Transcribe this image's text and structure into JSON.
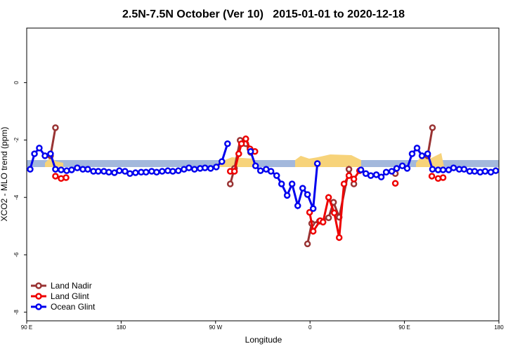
{
  "chart_data": {
    "type": "line",
    "title": "2.5N-7.5N October (Ver 10)   2015-01-01 to 2020-12-18",
    "x_label": "Longitude",
    "y_label": "XCO2 - MLO trend (ppm)",
    "xlim": [
      90,
      540
    ],
    "xticks": [
      {
        "value": 90,
        "label": "90 E"
      },
      180,
      {
        "value": 270,
        "label": "90 W"
      },
      {
        "value": 360,
        "label": "0"
      },
      {
        "value": 450,
        "label": "90 E"
      },
      {
        "value": 540,
        "label": "180"
      }
    ],
    "ylim": [
      -8.3,
      1.9
    ],
    "yticks": [
      0,
      -2,
      -4,
      -6,
      -8
    ],
    "legend": "bottom-left",
    "series": [
      {
        "name": "Land Nadir",
        "color": "#993333",
        "x": [
          112.7,
          117.4,
          null,
          284,
          288,
          293.4,
          298.8,
          303.4,
          null,
          357.6,
          361.6,
          369,
          377.7,
          382.4,
          387.8,
          397.1,
          401.8,
          null,
          441.3,
          null,
          472.1,
          476.7
        ],
        "values": [
          -2.55,
          -1.57,
          null,
          -3.53,
          -2.99,
          -2.01,
          -2.13,
          -2.43,
          null,
          -5.62,
          -4.91,
          -4.83,
          -4.71,
          -4.17,
          -4.69,
          -3.02,
          -3.53,
          null,
          -3.17,
          null,
          -2.55,
          -1.57
        ]
      },
      {
        "name": "Land Glint",
        "color": "#ee0000",
        "x": [
          117.4,
          null,
          122.8,
          127.5,
          null,
          284,
          288,
          292.1,
          294.7,
          298.8,
          302.8,
          307.5,
          null,
          359.6,
          363,
          369.7,
          372.4,
          377.7,
          383.1,
          387.8,
          392.4,
          397.1,
          401.8,
          407.2,
          null,
          441.3,
          null,
          476.1,
          null,
          482.1,
          486.8
        ],
        "values": [
          -3.26,
          null,
          -3.34,
          -3.31,
          null,
          -3.09,
          -3.09,
          -2.48,
          -2.13,
          -1.96,
          -2.31,
          -2.4,
          null,
          -4.52,
          -5.18,
          -4.81,
          -4.86,
          -4.0,
          -4.54,
          -5.4,
          -3.53,
          -3.24,
          -3.36,
          -3.07,
          null,
          -3.51,
          null,
          -3.26,
          null,
          -3.34,
          -3.31
        ]
      },
      {
        "name": "Ocean Glint",
        "color": "#0000ee",
        "x": [
          93.3,
          97.4,
          102,
          107.4,
          112.7,
          117.4,
          122.8,
          128.1,
          132.8,
          138.2,
          143.5,
          148.2,
          153.6,
          158.2,
          163.6,
          168.3,
          173.6,
          178.3,
          183.7,
          188.4,
          193.7,
          199.1,
          203.7,
          209.1,
          213.8,
          219.1,
          224.5,
          229.2,
          234.5,
          239.9,
          244.6,
          249.9,
          255.3,
          259.9,
          265.3,
          270.7,
          276,
          281.4,
          null,
          303.4,
          308.1,
          312.8,
          318.2,
          322.8,
          328.2,
          332.9,
          338.2,
          342.9,
          348.3,
          353,
          357.6,
          363,
          367,
          null,
          408.5,
          413.2,
          417.9,
          423.2,
          427.9,
          432.6,
          437.9,
          442.6,
          448,
          452.6,
          457.3,
          462,
          466.7,
          472.1,
          476.7,
          482.1,
          486.8,
          492.1,
          496.8,
          502.2,
          506.8,
          512.2,
          516.9,
          522.2,
          526.9,
          532.3,
          537
        ],
        "values": [
          -3.02,
          -2.48,
          -2.28,
          -2.55,
          -2.48,
          -3.02,
          -3.04,
          -3.07,
          -3.04,
          -2.97,
          -3.02,
          -3.02,
          -3.09,
          -3.09,
          -3.09,
          -3.12,
          -3.14,
          -3.07,
          -3.09,
          -3.17,
          -3.14,
          -3.12,
          -3.12,
          -3.09,
          -3.12,
          -3.09,
          -3.07,
          -3.09,
          -3.07,
          -3.02,
          -2.97,
          -3.02,
          -2.99,
          -2.97,
          -2.99,
          -2.94,
          -2.75,
          -2.13,
          null,
          -2.4,
          -2.9,
          -3.07,
          -3.02,
          -3.09,
          -3.24,
          -3.53,
          -3.93,
          -3.53,
          -4.29,
          -3.68,
          -3.9,
          -4.39,
          -2.82,
          null,
          -3.04,
          -3.17,
          -3.24,
          -3.21,
          -3.29,
          -3.12,
          -3.09,
          -2.99,
          -2.9,
          -2.99,
          -2.48,
          -2.28,
          -2.55,
          -2.48,
          -3.02,
          -3.04,
          -3.04,
          -3.04,
          -2.97,
          -3.02,
          -3.02,
          -3.09,
          -3.09,
          -3.12,
          -3.09,
          -3.12,
          -3.07
        ]
      }
    ]
  }
}
